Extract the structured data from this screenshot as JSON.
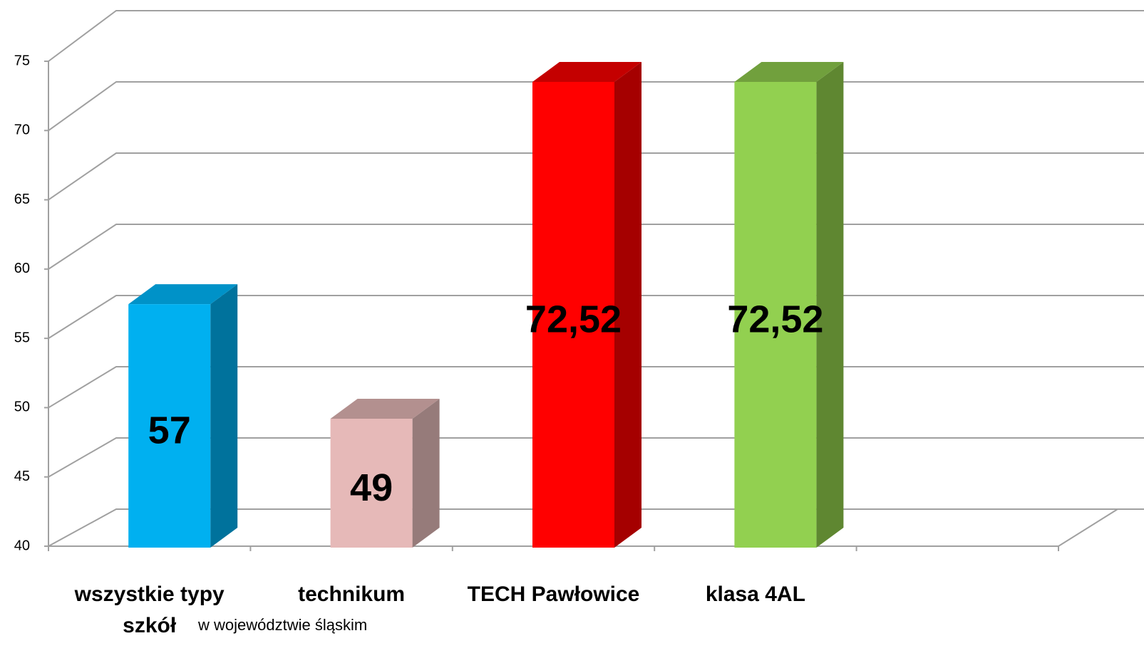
{
  "chart_data": {
    "type": "bar3d",
    "categories": [
      "wszystkie typy szkół",
      "technikum",
      "TECH Pawłowice",
      "klasa 4AL",
      null
    ],
    "values": [
      57,
      49,
      72.52,
      72.52,
      null
    ],
    "value_labels": [
      "57",
      "49",
      "72,52",
      "72,52",
      null
    ],
    "colors": [
      "#00b0f0",
      "#e6b9b8",
      "#ff0000",
      "#92d050",
      null
    ],
    "side_colors": [
      "#00729c",
      "#967b7a",
      "#a50000",
      "#5f8731",
      null
    ],
    "top_colors": [
      "#0092c8",
      "#b3908f",
      "#c40000",
      "#71a03d",
      null
    ],
    "annotation": "w województwie śląskim",
    "ylim": [
      40,
      75
    ],
    "yticks": [
      40,
      45,
      50,
      55,
      60,
      65,
      70,
      75
    ],
    "grid": true
  }
}
